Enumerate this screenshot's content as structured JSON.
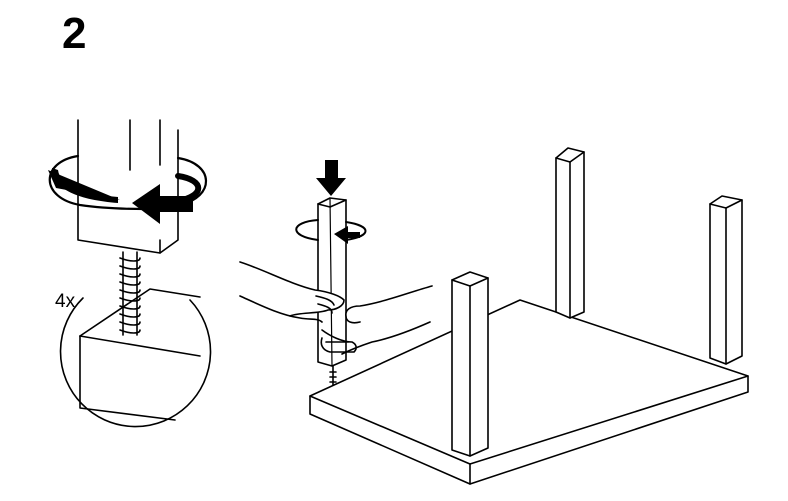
{
  "step": {
    "number": "2"
  },
  "detail": {
    "quantity": "4x"
  },
  "colors": {
    "line": "#000000",
    "fill": "#ffffff"
  }
}
